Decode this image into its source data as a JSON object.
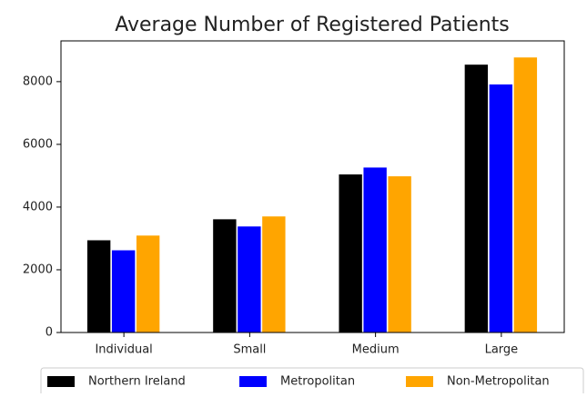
{
  "chart_data": {
    "type": "bar",
    "title": "Average Number of Registered Patients",
    "categories": [
      "Individual",
      "Small",
      "Medium",
      "Large"
    ],
    "series": [
      {
        "name": "Northern Ireland",
        "color": "#000000",
        "values": [
          2950,
          3620,
          5050,
          8550
        ]
      },
      {
        "name": "Metropolitan",
        "color": "#0000ff",
        "values": [
          2630,
          3390,
          5270,
          7920
        ]
      },
      {
        "name": "Non-Metropolitan",
        "color": "#ffa500",
        "values": [
          3100,
          3710,
          4990,
          8780
        ]
      }
    ],
    "ylim": [
      0,
      9300
    ],
    "yticks": [
      0,
      2000,
      4000,
      6000,
      8000
    ],
    "grid": false,
    "legend": "bottom"
  }
}
